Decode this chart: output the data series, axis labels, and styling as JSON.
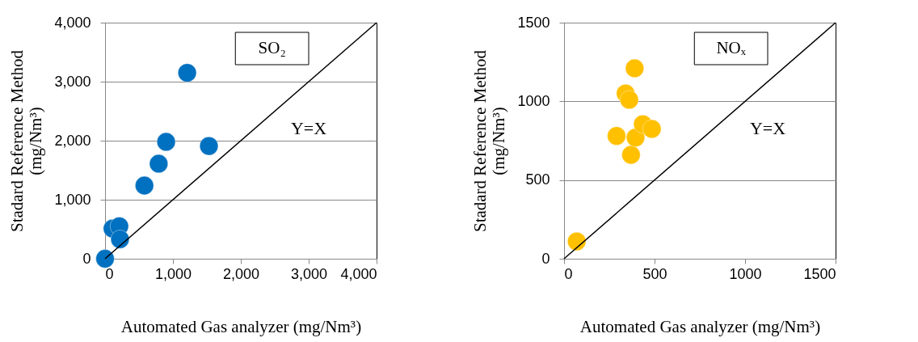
{
  "chart_data": [
    {
      "type": "scatter",
      "xlabel": "Automated Gas analyzer (mg/Nm³)",
      "ylabel": "Stadard Reference Method (mg/Nm³)",
      "xlim": [
        0,
        4000
      ],
      "ylim": [
        0,
        4000
      ],
      "xticks": [
        {
          "value": 0,
          "label": "0"
        },
        {
          "value": 1000,
          "label": "1,000"
        },
        {
          "value": 2000,
          "label": "2,000"
        },
        {
          "value": 3000,
          "label": "3,000"
        },
        {
          "value": 4000,
          "label": "4,000"
        }
      ],
      "yticks": [
        {
          "value": 0,
          "label": "0"
        },
        {
          "value": 1000,
          "label": "1,000"
        },
        {
          "value": 2000,
          "label": "2,000"
        },
        {
          "value": 3000,
          "label": "3,000"
        },
        {
          "value": 4000,
          "label": "4,000"
        }
      ],
      "grid": "y",
      "series": [
        {
          "name": "SO₂",
          "color": "#0070c0",
          "marker": "circle",
          "x": [
            0,
            110,
            210,
            220,
            580,
            790,
            900,
            1210,
            1530
          ],
          "values": [
            0,
            510,
            550,
            330,
            1240,
            1610,
            1980,
            3150,
            1910
          ]
        },
        {
          "type": "line",
          "color": "#000000",
          "x": [
            0,
            4000
          ],
          "values": [
            0,
            4000
          ]
        }
      ],
      "annotations": [
        "Y=X"
      ]
    },
    {
      "type": "scatter",
      "xlabel": "Automated Gas analyzer (mg/Nm³)",
      "ylabel": "Stadard Reference Method (mg/Nm³)",
      "xlim": [
        0,
        1500
      ],
      "ylim": [
        0,
        1500
      ],
      "xticks": [
        0,
        500,
        1000,
        1500
      ],
      "yticks": [
        0,
        500,
        1000,
        1500
      ],
      "grid": "y",
      "series": [
        {
          "name": "NOₓ",
          "color": "#ffc000",
          "marker": "circle",
          "x": [
            70,
            290,
            340,
            360,
            370,
            390,
            395,
            435,
            485
          ],
          "values": [
            110,
            780,
            1050,
            1010,
            660,
            1210,
            770,
            855,
            825
          ]
        },
        {
          "type": "line",
          "color": "#000000",
          "x": [
            0,
            1500
          ],
          "values": [
            0,
            1500
          ]
        }
      ],
      "annotations": [
        "Y=X"
      ]
    }
  ]
}
